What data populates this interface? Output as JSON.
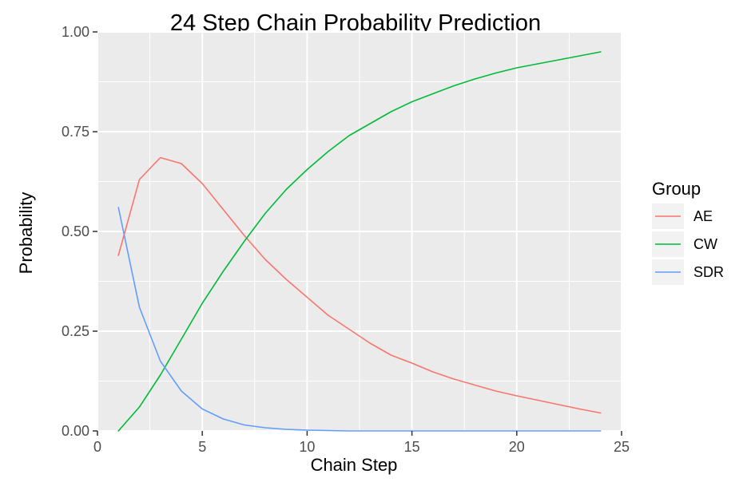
{
  "chart_data": {
    "type": "line",
    "title": "24 Step Chain Probability Prediction",
    "xlabel": "Chain Step",
    "ylabel": "Probability",
    "xlim": [
      0,
      25
    ],
    "ylim": [
      0,
      1
    ],
    "x_ticks": [
      0,
      5,
      10,
      15,
      20,
      25
    ],
    "x_tick_labels": [
      "0",
      "5",
      "10",
      "15",
      "20",
      "25"
    ],
    "y_ticks": [
      0,
      0.25,
      0.5,
      0.75,
      1.0
    ],
    "y_tick_labels": [
      "0.00",
      "0.25",
      "0.50",
      "0.75",
      "1.00"
    ],
    "grid": true,
    "legend": {
      "title": "Group",
      "position": "right"
    },
    "x": [
      1,
      2,
      3,
      4,
      5,
      6,
      7,
      8,
      9,
      10,
      11,
      12,
      13,
      14,
      15,
      16,
      17,
      18,
      19,
      20,
      21,
      22,
      23,
      24
    ],
    "series": [
      {
        "name": "AE",
        "color": "#F8766D",
        "values": [
          0.44,
          0.63,
          0.685,
          0.67,
          0.62,
          0.555,
          0.49,
          0.43,
          0.38,
          0.335,
          0.29,
          0.255,
          0.22,
          0.19,
          0.17,
          0.148,
          0.13,
          0.115,
          0.1,
          0.088,
          0.077,
          0.066,
          0.055,
          0.045
        ]
      },
      {
        "name": "CW",
        "color": "#00BA38",
        "values": [
          0.0,
          0.06,
          0.14,
          0.23,
          0.32,
          0.4,
          0.475,
          0.545,
          0.605,
          0.655,
          0.7,
          0.74,
          0.77,
          0.8,
          0.825,
          0.845,
          0.865,
          0.882,
          0.897,
          0.91,
          0.92,
          0.93,
          0.94,
          0.95
        ]
      },
      {
        "name": "SDR",
        "color": "#619CFF",
        "values": [
          0.56,
          0.31,
          0.175,
          0.1,
          0.055,
          0.03,
          0.015,
          0.008,
          0.004,
          0.002,
          0.001,
          0.0,
          0.0,
          0.0,
          0.0,
          0.0,
          0.0,
          0.0,
          0.0,
          0.0,
          0.0,
          0.0,
          0.0,
          0.0
        ]
      }
    ]
  }
}
